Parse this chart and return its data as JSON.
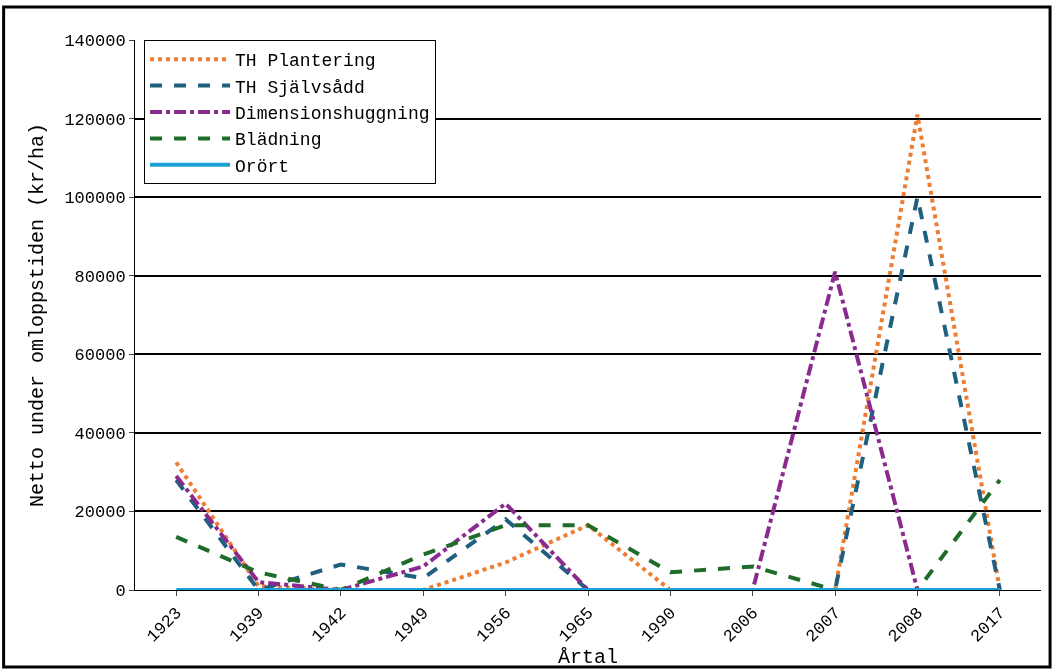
{
  "chart_data": {
    "type": "line",
    "xlabel": "Årtal",
    "ylabel": "Netto under omloppstiden (kr/ha)",
    "categories": [
      "1923",
      "1939",
      "1942",
      "1949",
      "1956",
      "1965",
      "1990",
      "2006",
      "2007",
      "2008",
      "2017"
    ],
    "series": [
      {
        "name": "TH Plantering",
        "color": "#ed7d31",
        "line_style": "dotted",
        "values": [
          32500,
          1000,
          0,
          0,
          7000,
          16500,
          0,
          0,
          0,
          121000,
          0
        ]
      },
      {
        "name": "TH Självsådd",
        "color": "#1f5f7f",
        "line_style": "dashed",
        "values": [
          28000,
          0,
          6500,
          3000,
          18000,
          0,
          0,
          0,
          0,
          100000,
          0
        ]
      },
      {
        "name": "Dimensionshuggning",
        "color": "#8b2a8e",
        "line_style": "dashdot",
        "values": [
          29000,
          2000,
          0,
          6000,
          22000,
          0,
          0,
          0,
          81000,
          0,
          0
        ]
      },
      {
        "name": "Blädning",
        "color": "#1e6b2a",
        "line_style": "dashed",
        "values": [
          13500,
          4500,
          0,
          9000,
          16500,
          16500,
          4500,
          6000,
          0,
          0,
          28000
        ]
      },
      {
        "name": "Orört",
        "color": "#1ba1d8",
        "line_style": "solid",
        "values": [
          0,
          0,
          0,
          0,
          0,
          0,
          0,
          0,
          0,
          0,
          0
        ]
      }
    ],
    "ylim": [
      0,
      140000
    ],
    "yticks": [
      0,
      20000,
      40000,
      60000,
      80000,
      100000,
      120000,
      140000
    ],
    "grid": "y",
    "legend": "top left",
    "marker": "none"
  }
}
